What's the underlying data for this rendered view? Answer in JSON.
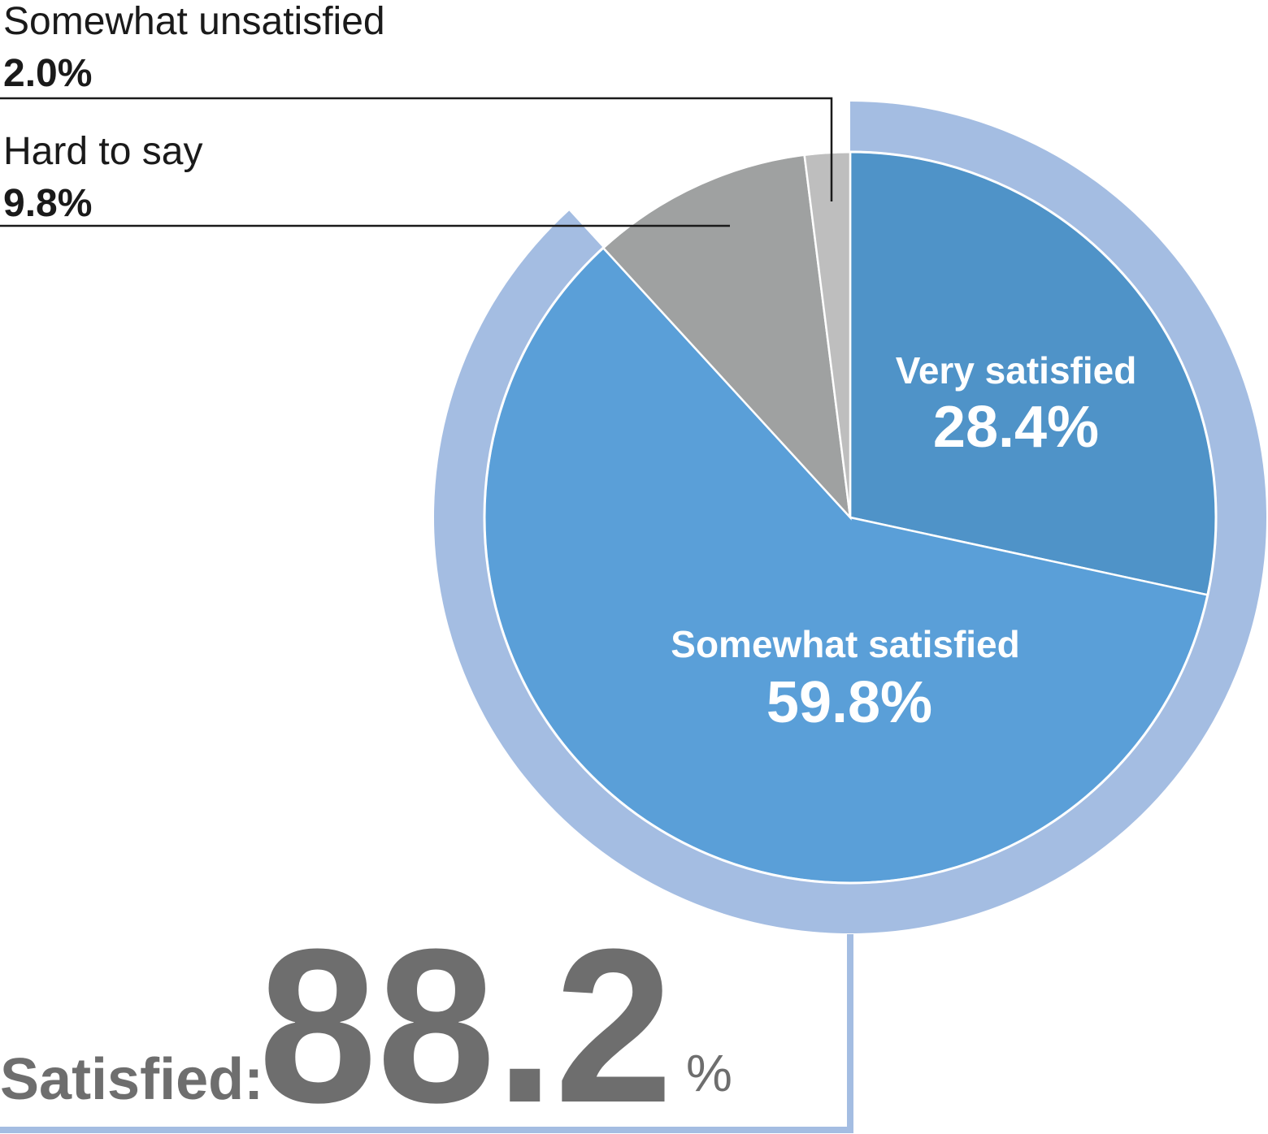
{
  "chart_data": {
    "type": "pie",
    "slices": [
      {
        "label": "Very satisfied",
        "value": 28.4,
        "value_text": "28.4%",
        "color": "#4f93c8"
      },
      {
        "label": "Somewhat satisfied",
        "value": 59.8,
        "value_text": "59.8%",
        "color": "#5a9fd8"
      },
      {
        "label": "Hard to say",
        "value": 9.8,
        "value_text": "9.8%",
        "color": "#9fa1a1"
      },
      {
        "label": "Somewhat unsatisfied",
        "value": 2.0,
        "value_text": "2.0%",
        "color": "#bebebe"
      }
    ],
    "summary": {
      "label": "Satisfied:",
      "value": "88.2",
      "unit": "%",
      "covers": [
        "Very satisfied",
        "Somewhat satisfied"
      ],
      "ring_color": "#a4bde2"
    }
  }
}
